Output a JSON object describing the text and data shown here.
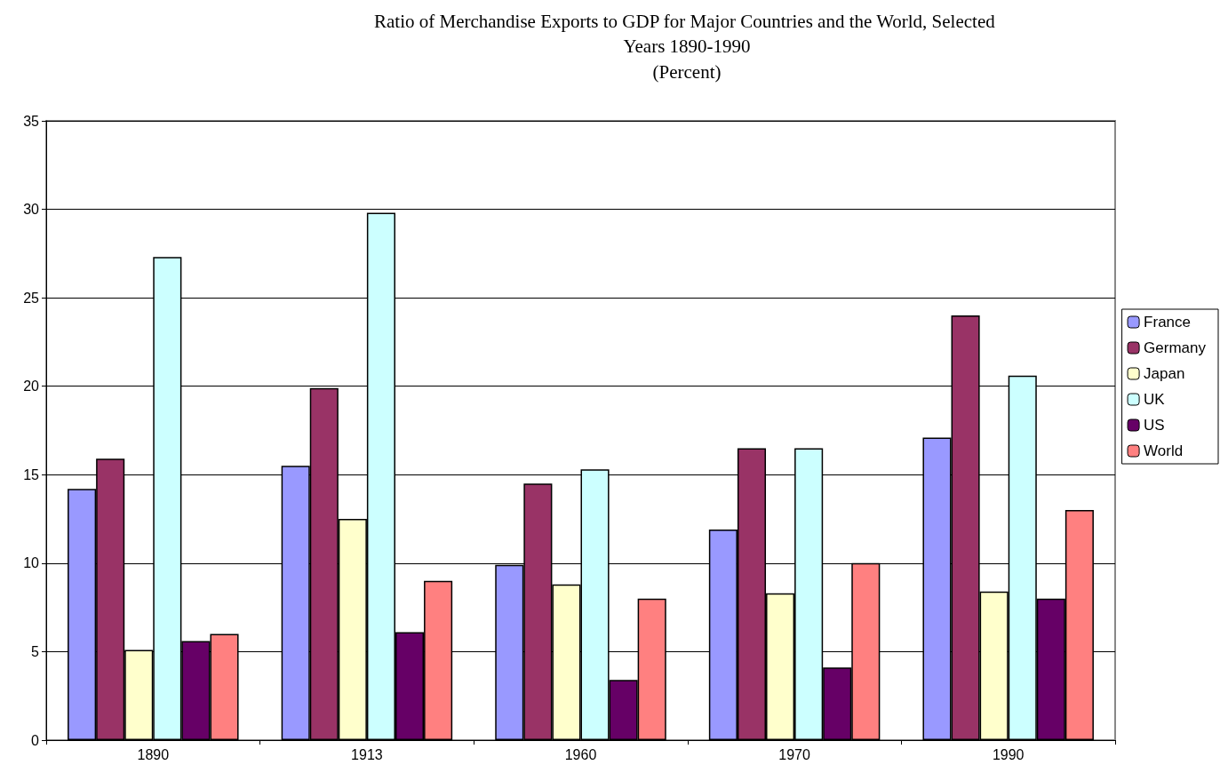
{
  "chart_data": {
    "type": "bar",
    "title": "Ratio of Merchandise Exports to GDP for Major Countries and the World, Selected Years 1890-1990",
    "subtitle": "(Percent)",
    "categories": [
      "1890",
      "1913",
      "1960",
      "1970",
      "1990"
    ],
    "series": [
      {
        "name": "France",
        "color": "#9999ff",
        "values": [
          14.2,
          15.5,
          9.9,
          11.9,
          17.1
        ]
      },
      {
        "name": "Germany",
        "color": "#993366",
        "values": [
          15.9,
          19.9,
          14.5,
          16.5,
          24.0
        ]
      },
      {
        "name": "Japan",
        "color": "#ffffcc",
        "values": [
          5.1,
          12.5,
          8.8,
          8.3,
          8.4
        ]
      },
      {
        "name": "UK",
        "color": "#ccffff",
        "values": [
          27.3,
          29.8,
          15.3,
          16.5,
          20.6
        ]
      },
      {
        "name": "US",
        "color": "#660066",
        "values": [
          5.6,
          6.1,
          3.4,
          4.1,
          8.0
        ]
      },
      {
        "name": "World",
        "color": "#ff8080",
        "values": [
          6.0,
          9.0,
          8.0,
          10.0,
          13.0
        ]
      }
    ],
    "ylim": [
      0,
      35
    ],
    "yticks": [
      0,
      5,
      10,
      15,
      20,
      25,
      30,
      35
    ],
    "grid": "y",
    "legend": "right"
  }
}
